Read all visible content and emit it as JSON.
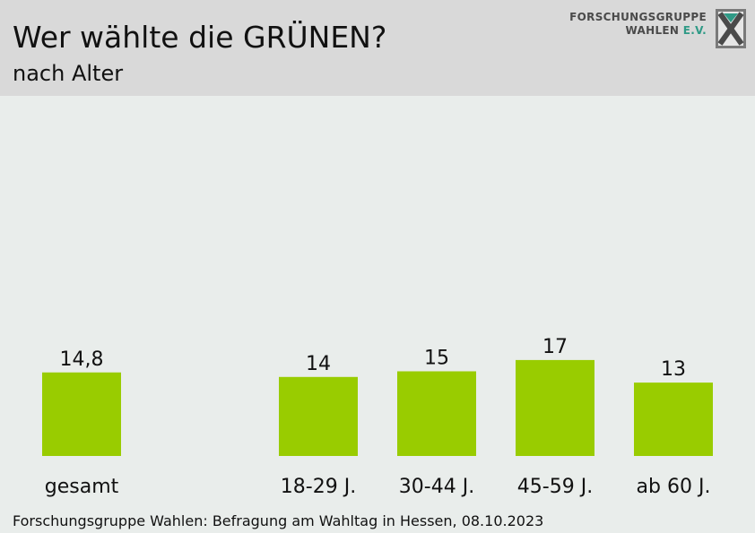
{
  "header": {
    "title": "Wer wählte die GRÜNEN?",
    "subtitle": "nach Alter",
    "logo_line1": "FORSCHUNGSGRUPPE",
    "logo_line2": "WAHLEN",
    "logo_line2_accent": "E.V."
  },
  "footer": {
    "source": "Forschungsgruppe Wahlen: Befragung am Wahltag in Hessen, 08.10.2023"
  },
  "colors": {
    "bar": "#99cc00",
    "header_bg": "#d9d9d9",
    "background": "#e9edeb",
    "logo_accent": "#2f9a86"
  },
  "chart_data": {
    "type": "bar",
    "categories": [
      "gesamt",
      "18-29 J.",
      "30-44 J.",
      "45-59 J.",
      "ab 60 J."
    ],
    "values": [
      14.8,
      14,
      15,
      17,
      13
    ],
    "value_labels": [
      "14,8",
      "14",
      "15",
      "17",
      "13"
    ],
    "title": "Wer wählte die GRÜNEN?",
    "subtitle": "nach Alter",
    "xlabel": "",
    "ylabel": "",
    "grid": false,
    "legend": "none"
  }
}
